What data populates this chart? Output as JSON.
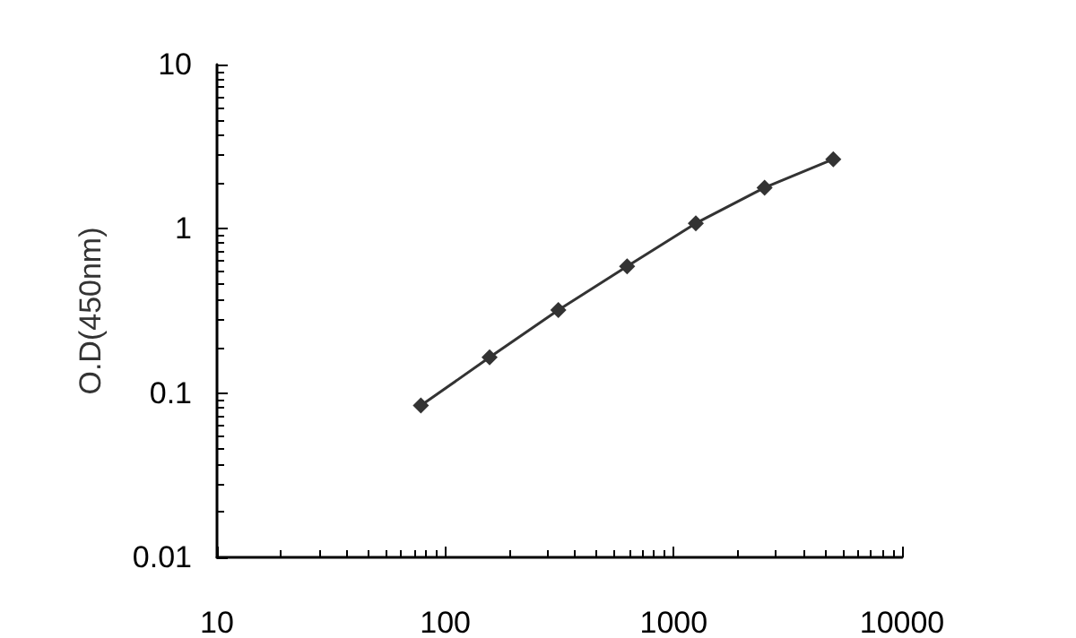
{
  "chart_data": {
    "type": "line",
    "ylabel": "O.D(450nm)",
    "x": [
      78.125,
      156.25,
      312.5,
      625,
      1250,
      2500,
      5000
    ],
    "series": [
      {
        "color": "#333333",
        "values": [
          0.084,
          0.165,
          0.32,
          0.59,
          1.08,
          1.78,
          2.65
        ]
      }
    ],
    "log": "xy",
    "xlim": [
      10,
      10000
    ],
    "xticks": [
      10,
      100,
      1000,
      10000
    ],
    "ylim": [
      0.01,
      10
    ],
    "yticks": [
      0.01,
      0.1,
      1,
      10
    ],
    "marker": "diamond",
    "line_style": "solid"
  }
}
